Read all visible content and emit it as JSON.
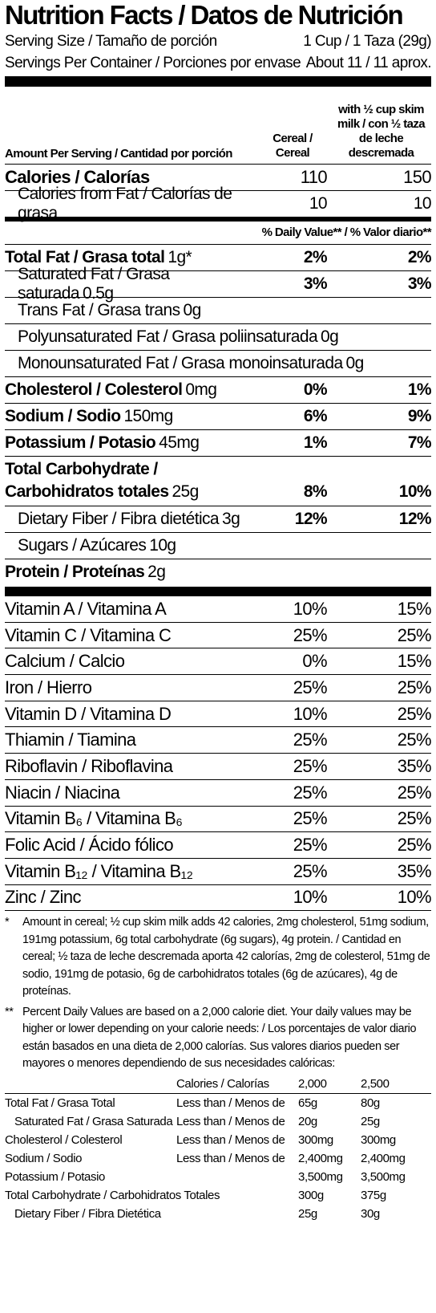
{
  "header": {
    "title": "Nutrition Facts / Datos de Nutrición",
    "serving_size_label": "Serving Size / Tamaño de porción",
    "serving_size": "1 Cup / 1 Taza (29g)",
    "servings_label": "Servings Per Container / Porciones por envase",
    "servings": "About 11 / 11 aprox."
  },
  "columns": {
    "amount_per_serving": "Amount Per Serving / Cantidad por porción",
    "cereal": "Cereal / Cereal",
    "with_milk": "with ½ cup skim milk / con ½ taza de leche descremada"
  },
  "calories": {
    "label": "Calories / Calorías",
    "cereal": "110",
    "with_milk": "150"
  },
  "calories_from_fat": {
    "label": "Calories from Fat / Calorías de grasa",
    "cereal": "10",
    "with_milk": "10"
  },
  "daily_value_header": "% Daily Value** / % Valor diario**",
  "nutrients": [
    {
      "name": "Total Fat / Grasa total",
      "amount": "1g*",
      "cereal": "2%",
      "with_milk": "2%",
      "sub": [
        {
          "name": "Saturated Fat / Grasa saturada",
          "amount": "0.5g",
          "cereal": "3%",
          "with_milk": "3%"
        },
        {
          "name": "Trans Fat / Grasa trans",
          "amount": "0g"
        },
        {
          "name": "Polyunsaturated Fat / Grasa poliinsaturada",
          "amount": "0g"
        },
        {
          "name": "Monounsaturated Fat / Grasa monoinsaturada",
          "amount": "0g"
        }
      ]
    },
    {
      "name": "Cholesterol / Colesterol",
      "amount": "0mg",
      "cereal": "0%",
      "with_milk": "1%"
    },
    {
      "name": "Sodium / Sodio",
      "amount": "150mg",
      "cereal": "6%",
      "with_milk": "9%"
    },
    {
      "name": "Potassium / Potasio",
      "amount": "45mg",
      "cereal": "1%",
      "with_milk": "7%"
    },
    {
      "name": "Total Carbohydrate /\nCarbohidratos totales",
      "amount": "25g",
      "cereal": "8%",
      "with_milk": "10%",
      "sub": [
        {
          "name": "Dietary Fiber / Fibra dietética",
          "amount": "3g",
          "cereal": "12%",
          "with_milk": "12%"
        },
        {
          "name": "Sugars / Azúcares",
          "amount": "10g"
        }
      ]
    },
    {
      "name": "Protein / Proteínas",
      "amount": "2g"
    }
  ],
  "vitamins": [
    {
      "name": "Vitamin A / Vitamina A",
      "cereal": "10%",
      "with_milk": "15%"
    },
    {
      "name": "Vitamin C / Vitamina C",
      "cereal": "25%",
      "with_milk": "25%"
    },
    {
      "name": "Calcium / Calcio",
      "cereal": "0%",
      "with_milk": "15%"
    },
    {
      "name": "Iron / Hierro",
      "cereal": "25%",
      "with_milk": "25%"
    },
    {
      "name": "Vitamin D / Vitamina D",
      "cereal": "10%",
      "with_milk": "25%"
    },
    {
      "name": "Thiamin / Tiamina",
      "cereal": "25%",
      "with_milk": "25%"
    },
    {
      "name": "Riboflavin / Riboflavina",
      "cereal": "25%",
      "with_milk": "35%"
    },
    {
      "name": "Niacin / Niacina",
      "cereal": "25%",
      "with_milk": "25%"
    },
    {
      "name": "Vitamin B₆ / Vitamina B₆",
      "cereal": "25%",
      "with_milk": "25%"
    },
    {
      "name": "Folic Acid / Ácido fólico",
      "cereal": "25%",
      "with_milk": "25%"
    },
    {
      "name": "Vitamin B₁₂ / Vitamina B₁₂",
      "cereal": "25%",
      "with_milk": "35%"
    },
    {
      "name": "Zinc / Zinc",
      "cereal": "10%",
      "with_milk": "10%"
    }
  ],
  "footnotes": [
    {
      "mark": "*",
      "text": "Amount in cereal; ½ cup skim milk adds 42 calories, 2mg cholesterol, 51mg sodium, 191mg potassium, 6g total carbohydrate (6g sugars), 4g protein. / Cantidad en cereal; ½ taza de leche descremada aporta 42 calorías, 2mg de colesterol, 51mg de sodio, 191mg de potasio, 6g de carbohidratos totales (6g de azúcares), 4g de proteínas."
    },
    {
      "mark": "**",
      "text": "Percent Daily Values are based on a 2,000 calorie diet. Your daily values may be higher or lower depending on your calorie needs: / Los porcentajes de valor diario están basados en una dieta de 2,000 calorías. Sus valores diarios pueden ser mayores o menores dependiendo de sus necesidades calóricas:"
    }
  ],
  "daily_table": {
    "header": {
      "calories": "Calories / Calorías",
      "col_2000": "2,000",
      "col_2500": "2,500"
    },
    "rows": [
      {
        "nutrient": "Total Fat / Grasa Total",
        "limit": "Less than / Menos de",
        "col_2000": "65g",
        "col_2500": "80g"
      },
      {
        "nutrient": "Saturated Fat / Grasa Saturada",
        "limit": "Less than / Menos de",
        "col_2000": "20g",
        "col_2500": "25g"
      },
      {
        "nutrient": "Cholesterol / Colesterol",
        "limit": "Less than / Menos de",
        "col_2000": "300mg",
        "col_2500": "300mg"
      },
      {
        "nutrient": "Sodium / Sodio",
        "limit": "Less than / Menos de",
        "col_2000": "2,400mg",
        "col_2500": "2,400mg"
      },
      {
        "nutrient": "Potassium / Potasio",
        "col_2000": "3,500mg",
        "col_2500": "3,500mg"
      },
      {
        "nutrient": "Total Carbohydrate / Carbohidratos Totales",
        "col_2000": "300g",
        "col_2500": "375g"
      },
      {
        "nutrient": "Dietary Fiber / Fibra Dietética",
        "col_2000": "25g",
        "col_2500": "30g"
      }
    ]
  }
}
